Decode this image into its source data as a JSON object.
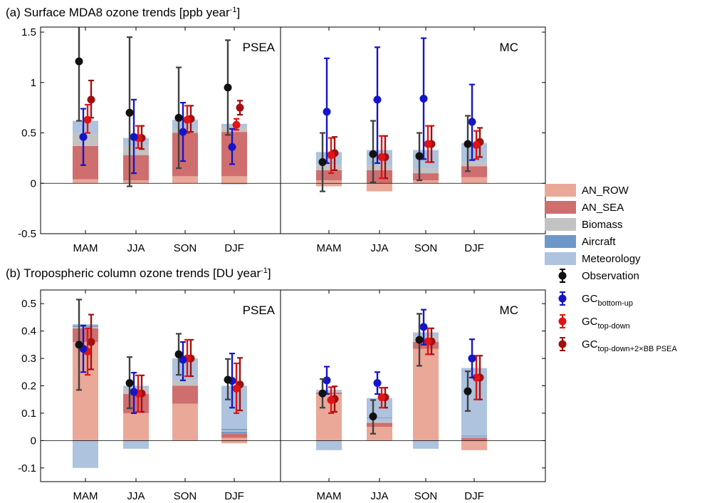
{
  "colors": {
    "AN_ROW": "#eaa898",
    "AN_SEA": "#cf6e6f",
    "Biomass": "#c3c3c3",
    "Aircraft": "#6f98ca",
    "Meteorology": "#adc3de",
    "Observation": "#111111",
    "GC_bottom_up": "#1515c8",
    "GC_top_down": "#e01414",
    "GC_top_down_2xBB": "#a01010",
    "obs_bar": "#404040"
  },
  "legend": [
    {
      "key": "AN_ROW",
      "type": "patch",
      "label": "AN_ROW",
      "sub": ""
    },
    {
      "key": "AN_SEA",
      "type": "patch",
      "label": "AN_SEA",
      "sub": ""
    },
    {
      "key": "Biomass",
      "type": "patch",
      "label": "Biomass",
      "sub": ""
    },
    {
      "key": "Aircraft",
      "type": "patch",
      "label": "Aircraft",
      "sub": ""
    },
    {
      "key": "Meteorology",
      "type": "patch",
      "label": "Meteorology",
      "sub": ""
    },
    {
      "key": "Observation",
      "type": "marker",
      "label": "Observation",
      "sub": ""
    },
    {
      "key": "GC_bottom_up",
      "type": "marker",
      "label": "GC",
      "sub": "bottom-up"
    },
    {
      "key": "GC_top_down",
      "type": "marker",
      "label": "GC",
      "sub": "top-down"
    },
    {
      "key": "GC_top_down_2xBB",
      "type": "marker",
      "label": "GC",
      "sub": "top-down+2×BB PSEA"
    }
  ],
  "chart_data": [
    {
      "type": "bar",
      "title": "(a) Surface MDA8 ozone trends [ppb year",
      "title_sup": "-1",
      "title_end": "]",
      "ylim": [
        -0.5,
        1.55
      ],
      "yticks": [
        -0.5,
        0,
        0.5,
        1,
        1.5
      ],
      "ytick_labels": [
        "-0.5",
        "0",
        "0.5",
        "1",
        "1.5"
      ],
      "categories": [
        "MAM",
        "JJA",
        "SON",
        "DJF"
      ],
      "regions": [
        {
          "name": "PSEA",
          "stacks": [
            {
              "pos": [
                [
                  "AN_ROW",
                  0.04
                ],
                [
                  "AN_SEA",
                  0.33
                ],
                [
                  "Biomass",
                  0.13
                ],
                [
                  "Meteorology",
                  0.12
                ]
              ],
              "neg": []
            },
            {
              "pos": [
                [
                  "AN_ROW",
                  0.03
                ],
                [
                  "AN_SEA",
                  0.25
                ],
                [
                  "Biomass",
                  0.09
                ],
                [
                  "Meteorology",
                  0.08
                ]
              ],
              "neg": []
            },
            {
              "pos": [
                [
                  "AN_ROW",
                  0.07
                ],
                [
                  "AN_SEA",
                  0.43
                ],
                [
                  "Biomass",
                  0.04
                ],
                [
                  "Meteorology",
                  0.09
                ]
              ],
              "neg": []
            },
            {
              "pos": [
                [
                  "AN_ROW",
                  0.07
                ],
                [
                  "AN_SEA",
                  0.44
                ],
                [
                  "Biomass",
                  0.05
                ],
                [
                  "Meteorology",
                  0.03
                ]
              ],
              "neg": [
                [
                  "Meteorology",
                  -0.01
                ]
              ]
            }
          ],
          "series": [
            {
              "key": "Observation",
              "values": [
                1.21,
                0.7,
                0.65,
                0.95
              ],
              "low": [
                0.62,
                -0.03,
                0.15,
                0.48
              ],
              "high": [
                1.8,
                1.45,
                1.15,
                1.42
              ]
            },
            {
              "key": "GC_bottom_up",
              "values": [
                0.46,
                0.46,
                0.51,
                0.36
              ],
              "low": [
                0.18,
                0.1,
                0.22,
                0.19
              ],
              "high": [
                0.74,
                0.83,
                0.8,
                0.54
              ]
            },
            {
              "key": "GC_top_down",
              "values": [
                0.63,
                0.45,
                0.63,
                0.58
              ],
              "low": [
                0.5,
                0.35,
                0.5,
                0.53
              ],
              "high": [
                0.78,
                0.57,
                0.77,
                0.64
              ]
            },
            {
              "key": "GC_top_down_2xBB",
              "values": [
                0.83,
                0.45,
                0.64,
                0.75
              ],
              "low": [
                0.65,
                0.34,
                0.51,
                0.68
              ],
              "high": [
                1.02,
                0.57,
                0.77,
                0.82
              ]
            }
          ]
        },
        {
          "name": "MC",
          "stacks": [
            {
              "pos": [
                [
                  "AN_ROW",
                  0.03
                ],
                [
                  "AN_SEA",
                  0.1
                ],
                [
                  "Biomass",
                  0.05
                ],
                [
                  "Meteorology",
                  0.13
                ]
              ],
              "neg": [
                [
                  "AN_ROW",
                  -0.03
                ]
              ]
            },
            {
              "pos": [
                [
                  "AN_SEA",
                  0.13
                ],
                [
                  "Biomass",
                  0.05
                ],
                [
                  "Meteorology",
                  0.15
                ]
              ],
              "neg": [
                [
                  "AN_ROW",
                  -0.08
                ]
              ]
            },
            {
              "pos": [
                [
                  "AN_ROW",
                  0.03
                ],
                [
                  "AN_SEA",
                  0.07
                ],
                [
                  "Biomass",
                  0.05
                ],
                [
                  "Meteorology",
                  0.18
                ]
              ],
              "neg": []
            },
            {
              "pos": [
                [
                  "AN_ROW",
                  0.06
                ],
                [
                  "AN_SEA",
                  0.11
                ],
                [
                  "Biomass",
                  0.04
                ],
                [
                  "Meteorology",
                  0.19
                ]
              ],
              "neg": []
            }
          ],
          "series": [
            {
              "key": "Observation",
              "values": [
                0.21,
                0.29,
                0.27,
                0.39
              ],
              "low": [
                -0.08,
                0.01,
                0.03,
                0.12
              ],
              "high": [
                0.5,
                0.62,
                0.5,
                0.67
              ]
            },
            {
              "key": "GC_bottom_up",
              "values": [
                0.71,
                0.83,
                0.84,
                0.61
              ],
              "low": [
                0.2,
                0.2,
                0.24,
                0.23
              ],
              "high": [
                1.24,
                1.35,
                1.44,
                0.98
              ]
            },
            {
              "key": "GC_top_down",
              "values": [
                0.28,
                0.26,
                0.39,
                0.38
              ],
              "low": [
                0.1,
                0.05,
                0.21,
                0.24
              ],
              "high": [
                0.45,
                0.47,
                0.57,
                0.52
              ]
            },
            {
              "key": "GC_top_down_2xBB",
              "values": [
                0.3,
                0.26,
                0.39,
                0.41
              ],
              "low": [
                0.13,
                0.05,
                0.21,
                0.26
              ],
              "high": [
                0.46,
                0.47,
                0.57,
                0.55
              ]
            }
          ]
        }
      ]
    },
    {
      "type": "bar",
      "title": "(b) Tropospheric column ozone trends [DU year",
      "title_sup": "-1",
      "title_end": "]",
      "ylim": [
        -0.15,
        0.55
      ],
      "yticks": [
        -0.1,
        0,
        0.1,
        0.2,
        0.3,
        0.4,
        0.5
      ],
      "ytick_labels": [
        "-0.1",
        "0",
        "0.1",
        "0.2",
        "0.3",
        "0.4",
        "0.5"
      ],
      "categories": [
        "MAM",
        "JJA",
        "SON",
        "DJF"
      ],
      "regions": [
        {
          "name": "PSEA",
          "stacks": [
            {
              "pos": [
                [
                  "AN_ROW",
                  0.36
                ],
                [
                  "AN_SEA",
                  0.05
                ],
                [
                  "Biomass",
                  0.005
                ],
                [
                  "Aircraft",
                  0.005
                ],
                [
                  "Meteorology",
                  0.005
                ]
              ],
              "neg": [
                [
                  "Meteorology",
                  -0.1
                ]
              ]
            },
            {
              "pos": [
                [
                  "AN_ROW",
                  0.1
                ],
                [
                  "AN_SEA",
                  0.07
                ],
                [
                  "Biomass",
                  0.02
                ],
                [
                  "Meteorology",
                  0.01
                ]
              ],
              "neg": [
                [
                  "Meteorology",
                  -0.03
                ]
              ]
            },
            {
              "pos": [
                [
                  "AN_ROW",
                  0.135
                ],
                [
                  "AN_SEA",
                  0.065
                ],
                [
                  "Biomass",
                  0.02
                ],
                [
                  "Meteorology",
                  0.08
                ]
              ],
              "neg": []
            },
            {
              "pos": [
                [
                  "AN_ROW",
                  0.01
                ],
                [
                  "AN_SEA",
                  0.015
                ],
                [
                  "Aircraft",
                  0.008
                ],
                [
                  "Meteorology",
                  0.005
                ],
                [
                  "Aircraft",
                  0.005
                ],
                [
                  "Meteorology",
                  0.157
                ]
              ],
              "neg": [
                [
                  "AN_ROW",
                  -0.01
                ]
              ]
            }
          ],
          "series": [
            {
              "key": "Observation",
              "values": [
                0.35,
                0.21,
                0.315,
                0.222
              ],
              "low": [
                0.185,
                0.118,
                0.24,
                0.15
              ],
              "high": [
                0.515,
                0.305,
                0.39,
                0.298
              ]
            },
            {
              "key": "GC_bottom_up",
              "values": [
                0.335,
                0.178,
                0.295,
                0.218
              ],
              "low": [
                0.25,
                0.1,
                0.22,
                0.12
              ],
              "high": [
                0.42,
                0.248,
                0.36,
                0.318
              ]
            },
            {
              "key": "GC_top_down",
              "values": [
                0.325,
                0.172,
                0.3,
                0.19
              ],
              "low": [
                0.24,
                0.105,
                0.235,
                0.1
              ],
              "high": [
                0.41,
                0.238,
                0.368,
                0.282
              ]
            },
            {
              "key": "GC_top_down_2xBB",
              "values": [
                0.36,
                0.172,
                0.3,
                0.205
              ],
              "low": [
                0.26,
                0.105,
                0.235,
                0.11
              ],
              "high": [
                0.46,
                0.238,
                0.368,
                0.302
              ]
            }
          ]
        },
        {
          "name": "MC",
          "stacks": [
            {
              "pos": [
                [
                  "AN_ROW",
                  0.17
                ],
                [
                  "AN_SEA",
                  0.005
                ],
                [
                  "Biomass",
                  0.005
                ],
                [
                  "Meteorology",
                  0.005
                ]
              ],
              "neg": [
                [
                  "Meteorology",
                  -0.035
                ]
              ]
            },
            {
              "pos": [
                [
                  "AN_ROW",
                  0.05
                ],
                [
                  "AN_SEA",
                  0.015
                ],
                [
                  "Biomass",
                  0.005
                ],
                [
                  "Meteorology",
                  0.012
                ],
                [
                  "Aircraft",
                  0.003
                ],
                [
                  "Meteorology",
                  0.07
                ]
              ],
              "neg": []
            },
            {
              "pos": [
                [
                  "AN_ROW",
                  0.335
                ],
                [
                  "AN_SEA",
                  0.025
                ],
                [
                  "Biomass",
                  0.02
                ],
                [
                  "Meteorology",
                  0.015
                ]
              ],
              "neg": [
                [
                  "Meteorology",
                  -0.03
                ]
              ]
            },
            {
              "pos": [
                [
                  "AN_SEA",
                  0.01
                ],
                [
                  "Meteorology",
                  0.005
                ],
                [
                  "Aircraft",
                  0.003
                ],
                [
                  "Meteorology",
                  0.247
                ]
              ],
              "neg": [
                [
                  "AN_ROW",
                  -0.035
                ]
              ]
            }
          ],
          "series": [
            {
              "key": "Observation",
              "values": [
                0.172,
                0.088,
                0.368,
                0.18
              ],
              "low": [
                0.12,
                0.025,
                0.273,
                0.108
              ],
              "high": [
                0.225,
                0.148,
                0.463,
                0.253
              ]
            },
            {
              "key": "GC_bottom_up",
              "values": [
                0.22,
                0.21,
                0.415,
                0.3
              ],
              "low": [
                0.17,
                0.17,
                0.35,
                0.23
              ],
              "high": [
                0.27,
                0.25,
                0.478,
                0.37
              ]
            },
            {
              "key": "GC_top_down",
              "values": [
                0.148,
                0.158,
                0.362,
                0.23
              ],
              "low": [
                0.1,
                0.12,
                0.315,
                0.15
              ],
              "high": [
                0.195,
                0.193,
                0.41,
                0.31
              ]
            },
            {
              "key": "GC_top_down_2xBB",
              "values": [
                0.152,
                0.158,
                0.362,
                0.23
              ],
              "low": [
                0.105,
                0.12,
                0.315,
                0.15
              ],
              "high": [
                0.198,
                0.193,
                0.41,
                0.31
              ]
            }
          ]
        }
      ]
    }
  ]
}
